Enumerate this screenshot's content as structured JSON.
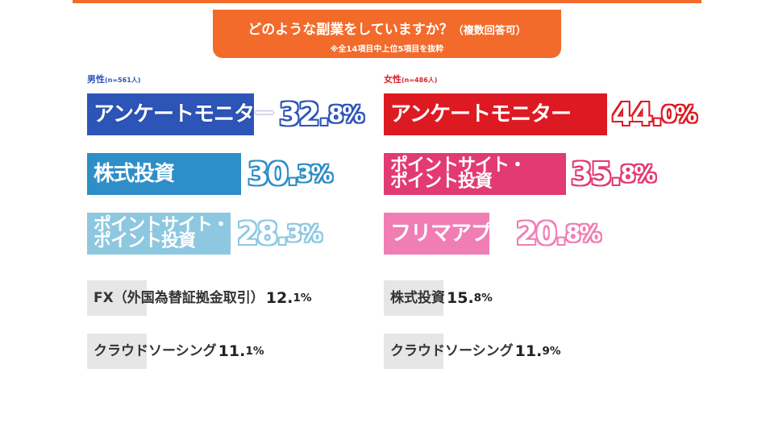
{
  "header": {
    "title": "どのような副業をしていますか？",
    "title_paren": "（複数回答可）",
    "note": "※全14項目中上位5項目を抜粋",
    "color": "#f26b2a"
  },
  "panels": {
    "male": {
      "label": "男性",
      "sub": "(n=561人)",
      "color": "#2d55b8"
    },
    "female": {
      "label": "女性",
      "sub": "(n=486人)",
      "color": "#d9252b"
    }
  },
  "chart_data": {
    "type": "bar",
    "title": "どのような副業をしていますか？（複数回答可）",
    "subtitle": "※全14項目中上位5項目を抜粋",
    "unit": "%",
    "series": [
      {
        "name": "男性(n=561人)",
        "items": [
          {
            "label": "アンケートモニター",
            "label_lines": [
              "アンケートモニター"
            ],
            "value": 32.8,
            "pct_int": "32.",
            "pct_dec": "8%",
            "color": "#2d55b8",
            "style": "big"
          },
          {
            "label": "株式投資",
            "label_lines": [
              "株式投資"
            ],
            "value": 30.3,
            "pct_int": "30.",
            "pct_dec": "3%",
            "color": "#2e8ec7",
            "style": "big"
          },
          {
            "label": "ポイントサイト・ポイント投資",
            "label_lines": [
              "ポイントサイト・",
              "ポイント投資"
            ],
            "value": 28.3,
            "pct_int": "28.",
            "pct_dec": "3%",
            "color": "#8ec8e0",
            "style": "two"
          },
          {
            "label": "FX（外国為替証拠金取引）",
            "label_lines": [
              "FX（外国為替証拠金取引）"
            ],
            "value": 12.1,
            "pct_int": "12.",
            "pct_dec": "1%",
            "color": "#e6e6e6",
            "style": "small"
          },
          {
            "label": "クラウドソーシング",
            "label_lines": [
              "クラウドソーシング"
            ],
            "value": 11.1,
            "pct_int": "11.",
            "pct_dec": "1%",
            "color": "#e6e6e6",
            "style": "small"
          }
        ]
      },
      {
        "name": "女性(n=486人)",
        "items": [
          {
            "label": "アンケートモニター",
            "label_lines": [
              "アンケートモニター"
            ],
            "value": 44.0,
            "pct_int": "44.",
            "pct_dec": "0%",
            "color": "#dd1a22",
            "style": "big"
          },
          {
            "label": "ポイントサイト・ポイント投資",
            "label_lines": [
              "ポイントサイト・",
              "ポイント投資"
            ],
            "value": 35.8,
            "pct_int": "35.",
            "pct_dec": "8%",
            "color": "#e23a72",
            "style": "two"
          },
          {
            "label": "フリマアプリ",
            "label_lines": [
              "フリマアプリ"
            ],
            "value": 20.8,
            "pct_int": "20.",
            "pct_dec": "8%",
            "color": "#f07eb4",
            "style": "big"
          },
          {
            "label": "株式投資",
            "label_lines": [
              "株式投資"
            ],
            "value": 15.8,
            "pct_int": "15.",
            "pct_dec": "8%",
            "color": "#e6e6e6",
            "style": "small"
          },
          {
            "label": "クラウドソーシング",
            "label_lines": [
              "クラウドソーシング"
            ],
            "value": 11.9,
            "pct_int": "11.",
            "pct_dec": "9%",
            "color": "#e6e6e6",
            "style": "small"
          }
        ]
      }
    ]
  }
}
